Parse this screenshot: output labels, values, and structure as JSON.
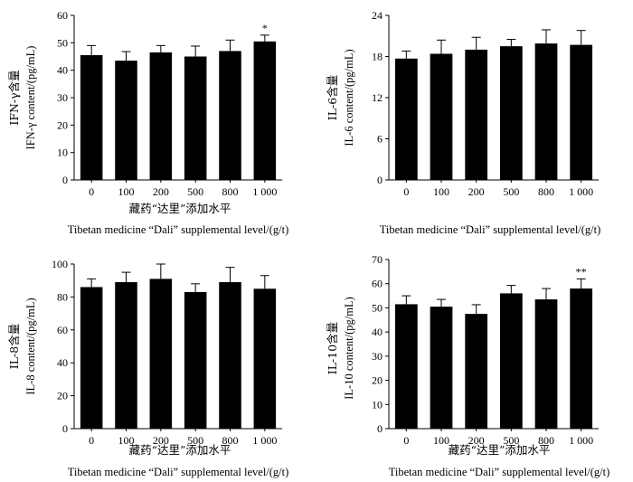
{
  "chart_data": [
    {
      "type": "bar",
      "categories": [
        "0",
        "100",
        "200",
        "500",
        "800",
        "1 000"
      ],
      "values": [
        45.5,
        43.5,
        46.5,
        45.0,
        47.0,
        50.5
      ],
      "errors": [
        3.5,
        3.3,
        2.5,
        3.8,
        4.0,
        2.3
      ],
      "significance": [
        "",
        "",
        "",
        "",
        "",
        "*"
      ],
      "ylim": [
        0,
        60
      ],
      "yticks": [
        "0",
        "10",
        "20",
        "30",
        "40",
        "50",
        "60"
      ],
      "ylabel_cn": "IFN-γ含量",
      "ylabel": "IFN-γ content/(pg/mL)",
      "xlabel_cn": "藏药“达里”添加水平",
      "xlabel": "Tibetan medicine “Dali” supplemental level/(g/t)"
    },
    {
      "type": "bar",
      "categories": [
        "0",
        "100",
        "200",
        "500",
        "800",
        "1 000"
      ],
      "values": [
        17.7,
        18.4,
        19.0,
        19.5,
        19.9,
        19.7
      ],
      "errors": [
        1.1,
        2.0,
        1.8,
        1.0,
        2.0,
        2.1
      ],
      "significance": [
        "",
        "",
        "",
        "",
        "",
        ""
      ],
      "ylim": [
        0,
        24
      ],
      "yticks": [
        "0",
        "6",
        "12",
        "18",
        "24"
      ],
      "ylabel_cn": "IL-6含量",
      "ylabel": "IL-6 content/(pg/mL)",
      "xlabel_cn": "",
      "xlabel": "Tibetan medicine “Dali” supplemental level/(g/t)"
    },
    {
      "type": "bar",
      "categories": [
        "0",
        "100",
        "200",
        "500",
        "800",
        "1 000"
      ],
      "values": [
        86,
        89,
        91,
        83,
        89,
        85
      ],
      "errors": [
        5,
        6,
        9,
        5,
        9,
        8
      ],
      "significance": [
        "",
        "",
        "",
        "",
        "",
        ""
      ],
      "ylim": [
        0,
        100
      ],
      "yticks": [
        "0",
        "20",
        "40",
        "60",
        "80",
        "100"
      ],
      "ylabel_cn": "IL-8含量",
      "ylabel": "IL-8 content/(pg/mL)",
      "xlabel_cn": "藏药“达里”添加水平",
      "xlabel": "Tibetan medicine “Dali” supplemental level/(g/t)"
    },
    {
      "type": "bar",
      "categories": [
        "0",
        "100",
        "200",
        "500",
        "800",
        "1 000"
      ],
      "values": [
        51.5,
        50.5,
        47.5,
        56.0,
        53.5,
        58.0
      ],
      "errors": [
        3.5,
        3.0,
        3.8,
        3.3,
        4.5,
        4.0
      ],
      "significance": [
        "",
        "",
        "",
        "",
        "",
        "**"
      ],
      "ylim": [
        0,
        70
      ],
      "yticks": [
        "0",
        "10",
        "20",
        "30",
        "40",
        "50",
        "60",
        "70"
      ],
      "ylabel_cn": "IL-10含量",
      "ylabel": "IL-10 content/(pg/mL)",
      "xlabel_cn": "藏药“达里”添加水平",
      "xlabel": "Tibetan medicine “Dali” supplemental level/(g/t)"
    }
  ]
}
